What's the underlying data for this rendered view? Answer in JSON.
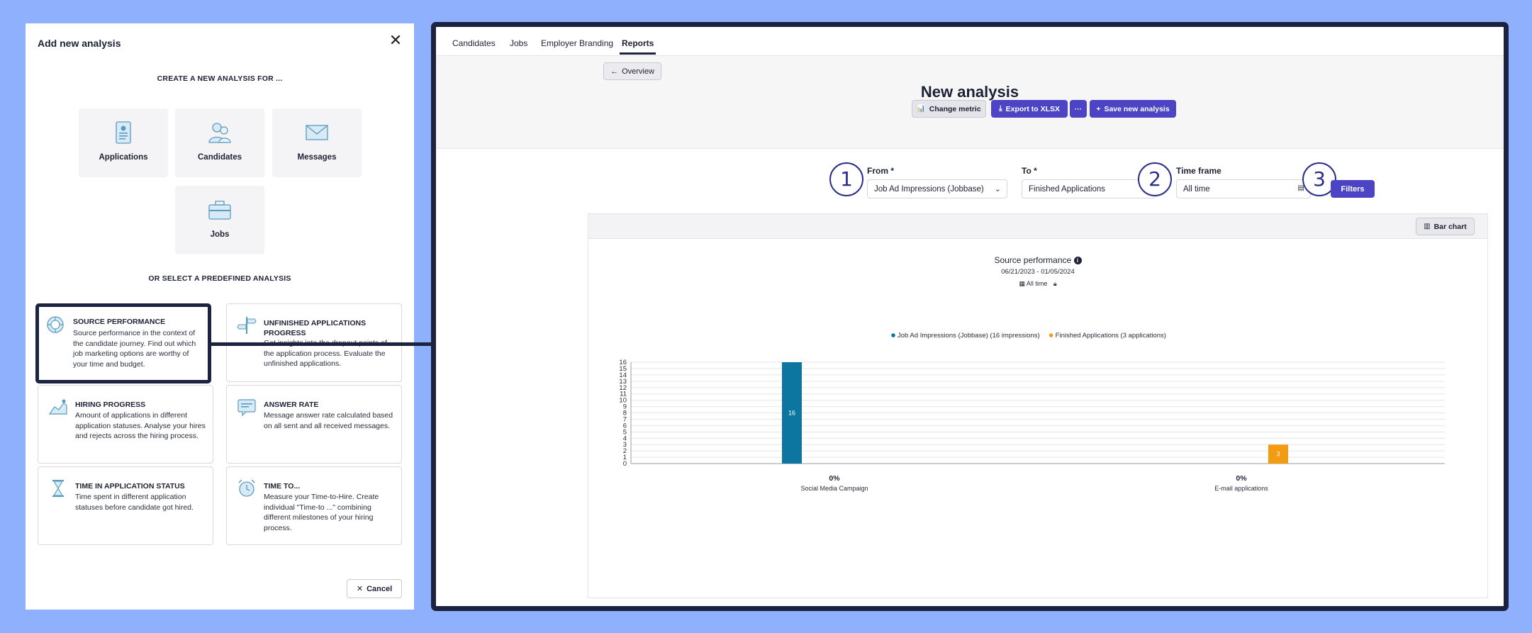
{
  "modal": {
    "title": "Add new analysis",
    "create_heading": "CREATE A NEW ANALYSIS FOR ...",
    "tiles": [
      {
        "label": "Applications",
        "icon": "applications-icon"
      },
      {
        "label": "Candidates",
        "icon": "candidates-icon"
      },
      {
        "label": "Messages",
        "icon": "messages-icon"
      },
      {
        "label": "Jobs",
        "icon": "jobs-icon"
      }
    ],
    "predefined_heading": "OR SELECT A PREDEFINED ANALYSIS",
    "cards": [
      {
        "title": "SOURCE PERFORMANCE",
        "desc": "Source performance in the context of the candidate journey. Find out which job marketing options are worthy of your time and budget.",
        "icon": "source-performance-icon"
      },
      {
        "title": "UNFINISHED APPLICATIONS PROGRESS",
        "desc": "Get insights into the dropout points of the application process. Evaluate the unfinished applications.",
        "icon": "signpost-icon"
      },
      {
        "title": "HIRING PROGRESS",
        "desc": "Amount of applications in different application statuses. Analyse your hires and rejects across the hiring process.",
        "icon": "hiring-progress-icon"
      },
      {
        "title": "ANSWER RATE",
        "desc": "Message answer rate calculated based on all sent and all received messages.",
        "icon": "answer-rate-icon"
      },
      {
        "title": "TIME IN APPLICATION STATUS",
        "desc": "Time spent in different application statuses before candidate got hired.",
        "icon": "hourglass-icon"
      },
      {
        "title": "TIME TO...",
        "desc": "Measure your Time-to-Hire. Create individual \"Time-to ...\" combining different milestones of your hiring process.",
        "icon": "alarm-clock-icon"
      }
    ],
    "cancel_label": "Cancel"
  },
  "nav": {
    "tabs": [
      "Candidates",
      "Jobs",
      "Employer Branding",
      "Reports"
    ],
    "active": "Reports"
  },
  "header": {
    "overview_label": "Overview",
    "title": "New analysis",
    "change_metric_label": "Change metric",
    "export_label": "Export to XLSX",
    "more_label": "···",
    "save_label": "Save new analysis"
  },
  "filters": {
    "from_label": "From *",
    "from_value": "Job Ad Impressions (Jobbase)",
    "to_label": "To *",
    "to_value": "Finished Applications",
    "timeframe_label": "Time frame",
    "timeframe_value": "All time",
    "filters_label": "Filters",
    "callouts": [
      "1",
      "2",
      "3"
    ]
  },
  "chart_toolbar": {
    "bar_chart_label": "Bar chart"
  },
  "chart_data": {
    "type": "bar",
    "title": "Source performance",
    "date_range": "06/21/2023 - 01/05/2024",
    "time_frame": "All time",
    "ylim": [
      0,
      16
    ],
    "yticks": [
      0,
      1,
      2,
      3,
      4,
      5,
      6,
      7,
      8,
      9,
      10,
      11,
      12,
      13,
      14,
      15,
      16
    ],
    "categories": [
      "Social Media Campaign",
      "E-mail applications"
    ],
    "category_percent": [
      "0%",
      "0%"
    ],
    "series": [
      {
        "name": "Job Ad Impressions (Jobbase) (16 impressions)",
        "color": "#0d76a0",
        "values": [
          16,
          null
        ]
      },
      {
        "name": "Finished Applications (3 applications)",
        "color": "#f39c12",
        "values": [
          null,
          3
        ]
      }
    ],
    "grid": true,
    "legend": "top-center"
  },
  "colors": {
    "accent": "#4c44c4",
    "frame": "#1b2340",
    "background": "#8fb0fc"
  }
}
